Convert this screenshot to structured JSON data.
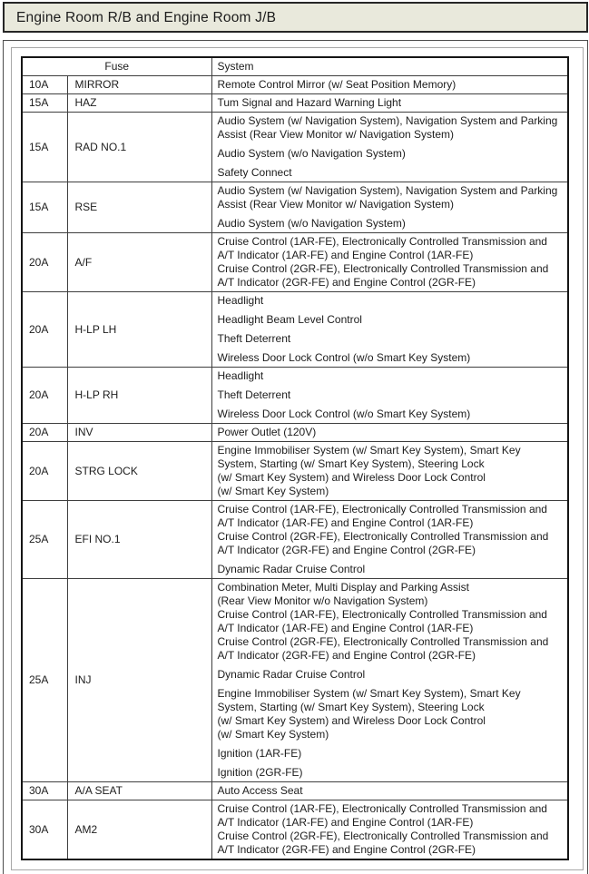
{
  "title": "Engine Room R/B and Engine Room J/B",
  "colors": {
    "title_bar_bg": "#e9e9dc",
    "title_bar_border": "#262626",
    "outer_box_border": "#4d4d4d",
    "inner_box_border": "#a8a8a8",
    "table_border": "#151515",
    "table_grid": "#3e3e3e",
    "text": "#1c1c1c",
    "page_bg": "#ffffff"
  },
  "table": {
    "fuse_header": "Fuse",
    "system_header": "System",
    "rows": [
      {
        "amp": "10A",
        "name": "MIRROR",
        "systems": [
          [
            "Remote Control Mirror (w/ Seat Position Memory)"
          ]
        ]
      },
      {
        "amp": "15A",
        "name": "HAZ",
        "systems": [
          [
            "Tum Signal and Hazard Warning Light"
          ]
        ]
      },
      {
        "amp": "15A",
        "name": "RAD NO.1",
        "systems": [
          [
            "Audio System (w/ Navigation System), Navigation System and Parking",
            "Assist (Rear View Monitor w/ Navigation System)"
          ],
          [
            "Audio System (w/o Navigation System)"
          ],
          [
            "Safety Connect"
          ]
        ]
      },
      {
        "amp": "15A",
        "name": "RSE",
        "systems": [
          [
            "Audio System (w/ Navigation System), Navigation System and Parking",
            "Assist (Rear View Monitor w/ Navigation System)"
          ],
          [
            "Audio System (w/o Navigation System)"
          ]
        ]
      },
      {
        "amp": "20A",
        "name": "A/F",
        "systems": [
          [
            "Cruise Control (1AR-FE), Electronically Controlled Transmission and",
            "A/T Indicator (1AR-FE) and Engine Control (1AR-FE)",
            "Cruise Control (2GR-FE), Electronically Controlled Transmission and",
            "A/T Indicator (2GR-FE) and Engine Control (2GR-FE)"
          ]
        ]
      },
      {
        "amp": "20A",
        "name": "H-LP LH",
        "systems": [
          [
            "Headlight"
          ],
          [
            "Headlight Beam Level Control"
          ],
          [
            "Theft Deterrent"
          ],
          [
            "Wireless Door Lock Control (w/o Smart Key System)"
          ]
        ]
      },
      {
        "amp": "20A",
        "name": "H-LP RH",
        "systems": [
          [
            "Headlight"
          ],
          [
            "Theft Deterrent"
          ],
          [
            "Wireless Door Lock Control (w/o Smart Key System)"
          ]
        ]
      },
      {
        "amp": "20A",
        "name": "INV",
        "systems": [
          [
            "Power Outlet (120V)"
          ]
        ]
      },
      {
        "amp": "20A",
        "name": "STRG LOCK",
        "systems": [
          [
            "Engine Immobiliser System (w/ Smart Key System), Smart Key",
            "System, Starting (w/ Smart Key System), Steering Lock",
            "(w/ Smart Key System) and Wireless Door Lock Control",
            "(w/ Smart Key System)"
          ]
        ]
      },
      {
        "amp": "25A",
        "name": "EFI NO.1",
        "systems": [
          [
            "Cruise Control (1AR-FE), Electronically Controlled Transmission and",
            "A/T Indicator (1AR-FE) and Engine Control (1AR-FE)",
            "Cruise Control (2GR-FE), Electronically Controlled Transmission and",
            "A/T Indicator (2GR-FE) and Engine Control (2GR-FE)"
          ],
          [
            "Dynamic Radar Cruise Control"
          ]
        ]
      },
      {
        "amp": "25A",
        "name": "INJ",
        "systems": [
          [
            "Combination Meter, Multi Display and Parking Assist",
            "(Rear View Monitor w/o Navigation System)",
            "Cruise Control (1AR-FE), Electronically Controlled Transmission and",
            "A/T Indicator (1AR-FE) and Engine Control (1AR-FE)",
            "Cruise Control (2GR-FE), Electronically Controlled Transmission and",
            "A/T Indicator (2GR-FE) and Engine Control (2GR-FE)"
          ],
          [
            "Dynamic Radar Cruise Control"
          ],
          [
            "Engine Immobiliser System (w/ Smart Key System), Smart Key",
            "System, Starting (w/ Smart Key System), Steering Lock",
            "(w/ Smart Key System) and Wireless Door Lock Control",
            "(w/ Smart Key System)"
          ],
          [
            "Ignition (1AR-FE)"
          ],
          [
            "Ignition (2GR-FE)"
          ]
        ]
      },
      {
        "amp": "30A",
        "name": "A/A SEAT",
        "systems": [
          [
            "Auto Access Seat"
          ]
        ]
      },
      {
        "amp": "30A",
        "name": "AM2",
        "systems": [
          [
            "Cruise Control (1AR-FE), Electronically Controlled Transmission and",
            "A/T Indicator (1AR-FE) and Engine Control (1AR-FE)",
            "Cruise Control (2GR-FE), Electronically Controlled Transmission and",
            "A/T Indicator (2GR-FE) and Engine Control (2GR-FE)"
          ]
        ]
      }
    ]
  }
}
